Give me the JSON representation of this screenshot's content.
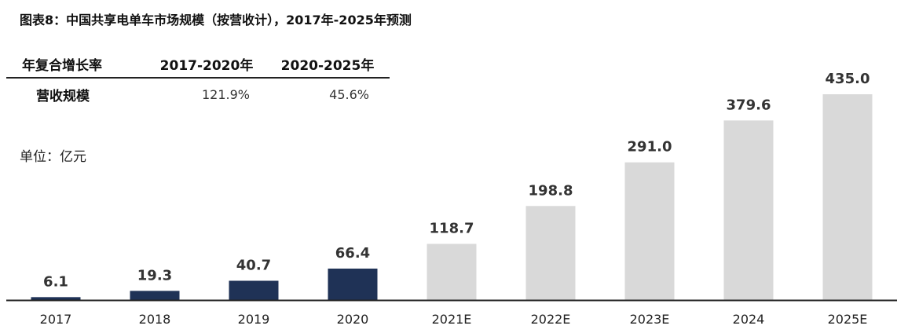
{
  "title": "图表8：中国共享电单车市场规模（按营收计），2017年-2025年预测",
  "cagr_table": {
    "header": [
      "年复合增长率",
      "2017-2020年",
      "2020-2025年"
    ],
    "row": {
      "label": "营收规模",
      "values": [
        "121.9%",
        "45.6%"
      ]
    }
  },
  "unit_label": "单位：亿元",
  "colors": {
    "actual": "#1f3256",
    "forecast": "#d9d9d9",
    "axis": "#222222"
  },
  "chart_data": {
    "type": "bar",
    "categories": [
      "2017",
      "2018",
      "2019",
      "2020",
      "2021E",
      "2022E",
      "2023E",
      "2024",
      "2025E"
    ],
    "values": [
      6.1,
      19.3,
      40.7,
      66.4,
      118.7,
      198.8,
      291.0,
      379.6,
      435.0
    ],
    "value_labels": [
      "6.1",
      "19.3",
      "40.7",
      "66.4",
      "118.7",
      "198.8",
      "291.0",
      "379.6",
      "435.0"
    ],
    "forecast_start_index": 4,
    "title": "",
    "xlabel": "",
    "ylabel": "",
    "ylim": [
      0,
      435
    ],
    "grid": false
  }
}
